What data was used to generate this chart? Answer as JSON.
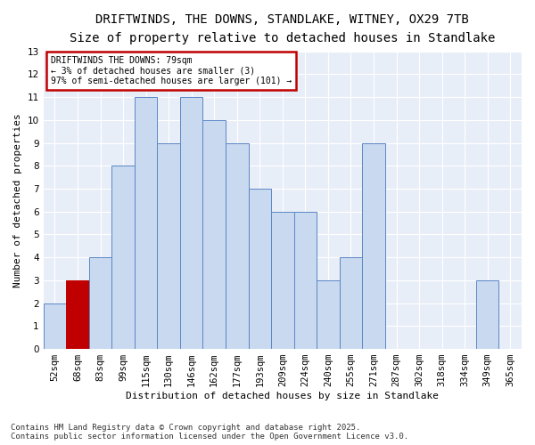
{
  "title_line1": "DRIFTWINDS, THE DOWNS, STANDLAKE, WITNEY, OX29 7TB",
  "title_line2": "Size of property relative to detached houses in Standlake",
  "xlabel": "Distribution of detached houses by size in Standlake",
  "ylabel": "Number of detached properties",
  "categories": [
    "52sqm",
    "68sqm",
    "83sqm",
    "99sqm",
    "115sqm",
    "130sqm",
    "146sqm",
    "162sqm",
    "177sqm",
    "193sqm",
    "209sqm",
    "224sqm",
    "240sqm",
    "255sqm",
    "271sqm",
    "287sqm",
    "302sqm",
    "318sqm",
    "334sqm",
    "349sqm",
    "365sqm"
  ],
  "values": [
    2,
    3,
    4,
    8,
    11,
    9,
    11,
    10,
    9,
    7,
    6,
    6,
    3,
    4,
    9,
    0,
    0,
    0,
    0,
    3,
    0
  ],
  "bar_color": "#c9d9f0",
  "bar_edge_color": "#5b87c5",
  "highlight_index": 1,
  "highlight_bar_color": "#c00000",
  "background_color": "#e8eef8",
  "annotation_text": "DRIFTWINDS THE DOWNS: 79sqm\n← 3% of detached houses are smaller (3)\n97% of semi-detached houses are larger (101) →",
  "annotation_box_color": "#c00000",
  "ylim": [
    0,
    13
  ],
  "yticks": [
    0,
    1,
    2,
    3,
    4,
    5,
    6,
    7,
    8,
    9,
    10,
    11,
    12,
    13
  ],
  "footer": "Contains HM Land Registry data © Crown copyright and database right 2025.\nContains public sector information licensed under the Open Government Licence v3.0.",
  "title_fontsize": 10,
  "subtitle_fontsize": 9,
  "axis_label_fontsize": 8,
  "tick_fontsize": 7.5,
  "footer_fontsize": 6.5,
  "annot_fontsize": 7
}
